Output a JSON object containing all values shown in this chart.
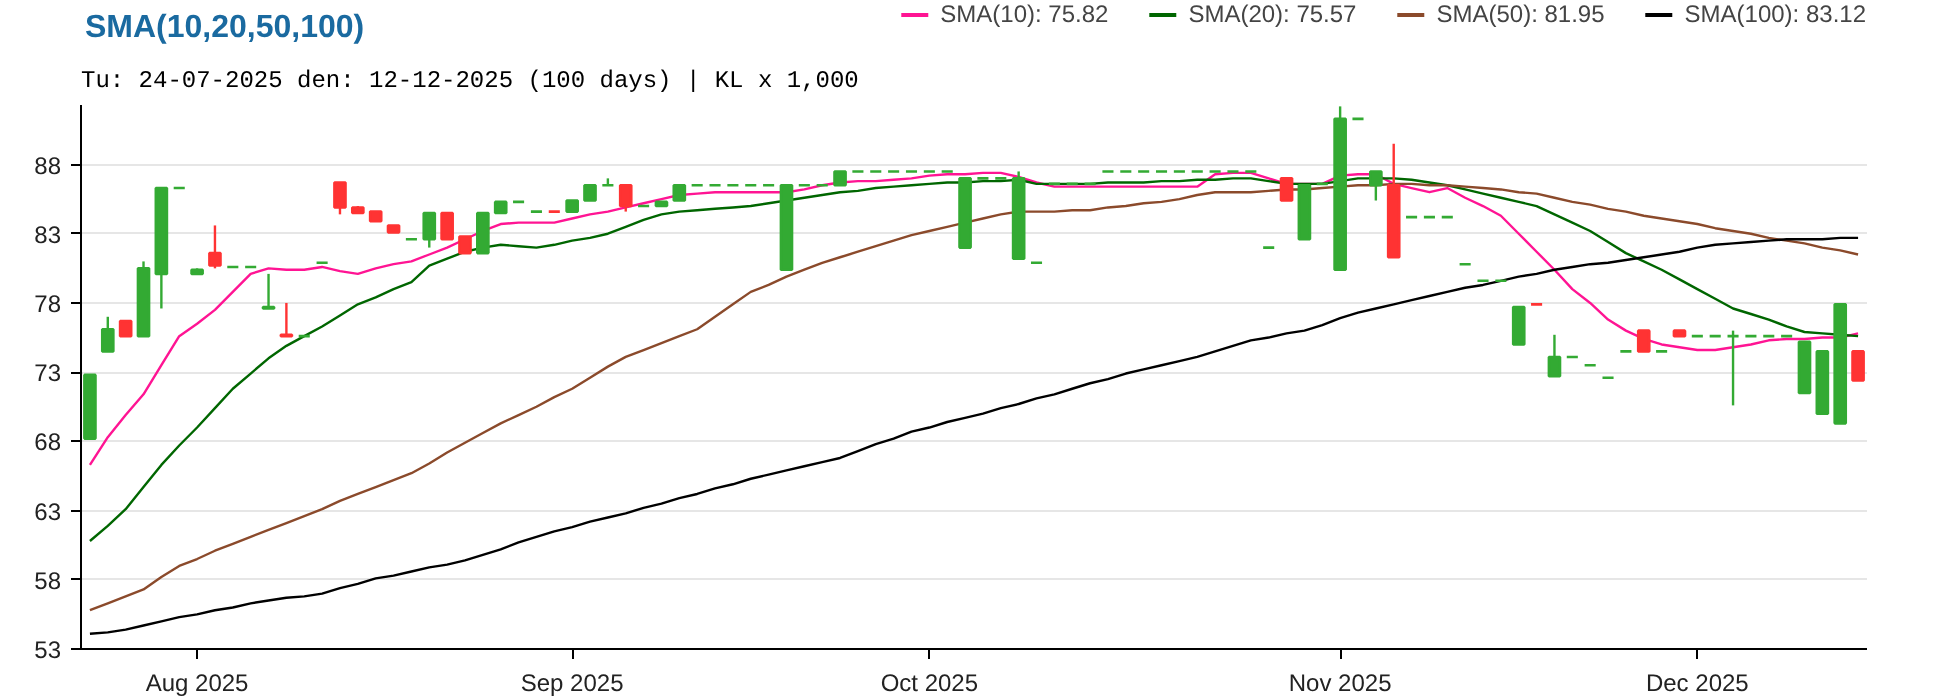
{
  "chart_data": {
    "type": "candlestick",
    "title": "SMA(10,20,50,100)",
    "subtitle": "Tu: 24-07-2025 den: 12-12-2025 (100 days) | KL x 1,000",
    "categories": [
      null,
      null,
      null,
      null,
      null,
      null,
      "Aug 2025",
      null,
      null,
      null,
      null,
      null,
      null,
      null,
      null,
      null,
      null,
      null,
      null,
      null,
      null,
      null,
      null,
      null,
      null,
      null,
      null,
      "Sep 2025",
      null,
      null,
      null,
      null,
      null,
      null,
      null,
      null,
      null,
      null,
      null,
      null,
      null,
      null,
      null,
      null,
      null,
      null,
      null,
      "Oct 2025",
      null,
      null,
      null,
      null,
      null,
      null,
      null,
      null,
      null,
      null,
      null,
      null,
      null,
      null,
      null,
      null,
      null,
      null,
      null,
      null,
      null,
      null,
      "Nov 2025",
      null,
      null,
      null,
      null,
      null,
      null,
      null,
      null,
      null,
      null,
      null,
      null,
      null,
      null,
      null,
      null,
      null,
      null,
      null,
      "Dec 2025",
      null,
      null,
      null,
      null,
      null,
      null,
      null,
      null,
      null
    ],
    "ohlc": [
      [
        68.2,
        72.8,
        68.2,
        72.8
      ],
      [
        74.5,
        77.0,
        74.5,
        76.1
      ],
      [
        76.7,
        76.7,
        75.6,
        75.6
      ],
      [
        75.6,
        81.0,
        75.6,
        80.5
      ],
      [
        80.1,
        86.3,
        77.6,
        86.3
      ],
      [
        86.3,
        86.3,
        86.3,
        86.3
      ],
      [
        80.1,
        80.5,
        80.1,
        80.4
      ],
      [
        81.6,
        83.6,
        80.5,
        80.7
      ],
      [
        80.6,
        80.6,
        80.6,
        80.6
      ],
      [
        80.6,
        80.6,
        80.6,
        80.6
      ],
      [
        77.6,
        80.1,
        77.6,
        77.7
      ],
      [
        75.7,
        78.0,
        75.6,
        75.6
      ],
      [
        75.6,
        75.6,
        75.6,
        75.6
      ],
      [
        80.9,
        80.9,
        80.9,
        80.9
      ],
      [
        86.7,
        86.7,
        84.4,
        84.9
      ],
      [
        84.9,
        85.0,
        84.5,
        84.5
      ],
      [
        84.6,
        84.6,
        83.9,
        83.9
      ],
      [
        83.6,
        83.6,
        83.1,
        83.1
      ],
      [
        82.6,
        82.6,
        82.6,
        82.6
      ],
      [
        82.6,
        84.5,
        82.0,
        84.5
      ],
      [
        84.5,
        84.5,
        82.6,
        82.6
      ],
      [
        82.8,
        82.8,
        81.6,
        81.6
      ],
      [
        81.6,
        84.5,
        81.6,
        84.5
      ],
      [
        84.5,
        85.3,
        84.5,
        85.3
      ],
      [
        85.3,
        85.3,
        85.3,
        85.3
      ],
      [
        84.6,
        84.6,
        84.6,
        84.6
      ],
      [
        84.6,
        84.6,
        84.6,
        84.6
      ],
      [
        84.6,
        85.4,
        84.6,
        85.4
      ],
      [
        85.4,
        86.5,
        85.4,
        86.5
      ],
      [
        86.5,
        87.0,
        86.5,
        86.5
      ],
      [
        86.5,
        86.5,
        84.6,
        85.0
      ],
      [
        85.0,
        85.0,
        85.0,
        85.0
      ],
      [
        85.0,
        85.3,
        85.0,
        85.3
      ],
      [
        85.4,
        86.5,
        85.4,
        86.5
      ],
      [
        86.5,
        86.5,
        86.5,
        86.5
      ],
      [
        86.5,
        86.5,
        86.5,
        86.5
      ],
      [
        86.5,
        86.5,
        86.5,
        86.5
      ],
      [
        86.5,
        86.5,
        86.5,
        86.5
      ],
      [
        86.5,
        86.5,
        86.5,
        86.5
      ],
      [
        80.4,
        86.5,
        80.4,
        86.5
      ],
      [
        86.5,
        86.5,
        86.5,
        86.5
      ],
      [
        86.5,
        86.5,
        86.5,
        86.5
      ],
      [
        86.5,
        87.5,
        86.5,
        87.5
      ],
      [
        87.5,
        87.5,
        87.5,
        87.5
      ],
      [
        87.5,
        87.5,
        87.5,
        87.5
      ],
      [
        87.5,
        87.5,
        87.5,
        87.5
      ],
      [
        87.5,
        87.5,
        87.5,
        87.5
      ],
      [
        87.5,
        87.5,
        87.5,
        87.5
      ],
      [
        87.5,
        87.5,
        87.5,
        87.5
      ],
      [
        82.0,
        87.0,
        82.0,
        87.0
      ],
      [
        87.0,
        87.0,
        87.0,
        87.0
      ],
      [
        87.0,
        87.0,
        87.0,
        87.0
      ],
      [
        81.2,
        87.5,
        81.2,
        87.0
      ],
      [
        80.9,
        80.9,
        80.9,
        80.9
      ],
      [
        86.6,
        86.6,
        86.6,
        86.6
      ],
      [
        86.6,
        86.6,
        86.6,
        86.6
      ],
      [
        86.6,
        86.6,
        86.6,
        86.6
      ],
      [
        87.5,
        87.5,
        87.5,
        87.5
      ],
      [
        87.5,
        87.5,
        87.5,
        87.5
      ],
      [
        87.5,
        87.5,
        87.5,
        87.5
      ],
      [
        87.5,
        87.5,
        87.5,
        87.5
      ],
      [
        87.5,
        87.5,
        87.5,
        87.5
      ],
      [
        87.5,
        87.5,
        87.5,
        87.5
      ],
      [
        87.5,
        87.5,
        87.5,
        87.5
      ],
      [
        87.5,
        87.5,
        87.5,
        87.5
      ],
      [
        87.5,
        87.5,
        87.5,
        87.5
      ],
      [
        82.0,
        82.0,
        82.0,
        82.0
      ],
      [
        87.0,
        87.0,
        85.4,
        85.4
      ],
      [
        82.6,
        86.5,
        82.6,
        86.5
      ],
      [
        86.6,
        86.6,
        86.6,
        86.6
      ],
      [
        80.4,
        92.2,
        80.4,
        91.3
      ],
      [
        91.3,
        91.3,
        91.3,
        91.3
      ],
      [
        86.5,
        87.5,
        85.4,
        87.5
      ],
      [
        86.5,
        89.5,
        81.3,
        81.3
      ],
      [
        84.2,
        84.2,
        84.2,
        84.2
      ],
      [
        84.2,
        84.2,
        84.2,
        84.2
      ],
      [
        84.2,
        84.2,
        84.2,
        84.2
      ],
      [
        80.8,
        80.8,
        80.8,
        80.8
      ],
      [
        79.6,
        79.6,
        79.6,
        79.6
      ],
      [
        79.6,
        79.6,
        79.6,
        79.6
      ],
      [
        75.0,
        77.7,
        75.0,
        77.7
      ],
      [
        77.9,
        77.9,
        77.9,
        77.9
      ],
      [
        72.7,
        75.7,
        72.7,
        74.1
      ],
      [
        74.1,
        74.1,
        74.1,
        74.1
      ],
      [
        73.5,
        73.5,
        73.5,
        73.5
      ],
      [
        72.6,
        72.6,
        72.6,
        72.6
      ],
      [
        74.5,
        74.5,
        74.5,
        74.5
      ],
      [
        76.0,
        76.0,
        74.5,
        74.5
      ],
      [
        74.5,
        74.5,
        74.5,
        74.5
      ],
      [
        76.0,
        76.0,
        75.6,
        75.6
      ],
      [
        75.6,
        75.6,
        75.6,
        75.6
      ],
      [
        75.6,
        75.6,
        75.6,
        75.6
      ],
      [
        75.6,
        76.0,
        70.6,
        75.6
      ],
      [
        75.6,
        75.6,
        75.6,
        75.6
      ],
      [
        75.6,
        75.6,
        75.6,
        75.6
      ],
      [
        75.6,
        75.6,
        75.6,
        75.6
      ],
      [
        71.5,
        75.2,
        71.5,
        75.2
      ],
      [
        70.0,
        74.5,
        70.0,
        74.5
      ],
      [
        69.3,
        77.9,
        69.3,
        77.9
      ],
      [
        74.5,
        74.5,
        72.4,
        72.4
      ]
    ],
    "colors": [
      "#33aa33",
      "#33aa33",
      "#ff3333",
      "#33aa33",
      "#33aa33",
      "#33aa33",
      "#33aa33",
      "#ff3333",
      "#33aa33",
      "#33aa33",
      "#33aa33",
      "#ff3333",
      "#33aa33",
      "#33aa33",
      "#ff3333",
      "#ff3333",
      "#ff3333",
      "#ff3333",
      "#33aa33",
      "#33aa33",
      "#ff3333",
      "#ff3333",
      "#33aa33",
      "#33aa33",
      "#33aa33",
      "#33aa33",
      "#ff3333",
      "#33aa33",
      "#33aa33",
      "#33aa33",
      "#ff3333",
      "#33aa33",
      "#33aa33",
      "#33aa33",
      "#33aa33",
      "#33aa33",
      "#33aa33",
      "#33aa33",
      "#33aa33",
      "#33aa33",
      "#33aa33",
      "#33aa33",
      "#33aa33",
      "#33aa33",
      "#33aa33",
      "#33aa33",
      "#33aa33",
      "#33aa33",
      "#33aa33",
      "#33aa33",
      "#33aa33",
      "#33aa33",
      "#33aa33",
      "#33aa33",
      "#33aa33",
      "#33aa33",
      "#33aa33",
      "#33aa33",
      "#33aa33",
      "#33aa33",
      "#33aa33",
      "#33aa33",
      "#33aa33",
      "#33aa33",
      "#33aa33",
      "#33aa33",
      "#33aa33",
      "#ff3333",
      "#33aa33",
      "#33aa33",
      "#33aa33",
      "#33aa33",
      "#33aa33",
      "#ff3333",
      "#33aa33",
      "#33aa33",
      "#33aa33",
      "#33aa33",
      "#33aa33",
      "#33aa33",
      "#33aa33",
      "#ff3333",
      "#33aa33",
      "#33aa33",
      "#33aa33",
      "#33aa33",
      "#33aa33",
      "#ff3333",
      "#33aa33",
      "#ff3333",
      "#33aa33",
      "#33aa33",
      "#33aa33",
      "#33aa33",
      "#33aa33",
      "#33aa33",
      "#33aa33",
      "#33aa33",
      "#33aa33",
      "#ff3333"
    ],
    "series": [
      {
        "type": "line",
        "name": "SMA(10): 75.82",
        "color": "#ff1493",
        "values": [
          66.3,
          68.3,
          69.9,
          71.4,
          73.5,
          75.6,
          76.5,
          77.5,
          78.8,
          80.1,
          80.5,
          80.4,
          80.4,
          80.6,
          80.3,
          80.1,
          80.5,
          80.8,
          81.0,
          81.5,
          82.0,
          82.6,
          83.2,
          83.7,
          83.8,
          83.8,
          83.8,
          84.1,
          84.4,
          84.6,
          84.9,
          85.2,
          85.5,
          85.8,
          85.9,
          86.0,
          86.0,
          86.0,
          86.0,
          86.0,
          86.2,
          86.5,
          86.7,
          86.8,
          86.8,
          86.9,
          87.0,
          87.2,
          87.3,
          87.3,
          87.4,
          87.4,
          87.1,
          86.7,
          86.4,
          86.4,
          86.4,
          86.4,
          86.4,
          86.4,
          86.4,
          86.4,
          86.4,
          87.3,
          87.4,
          87.4,
          87.0,
          86.6,
          86.6,
          86.6,
          87.2,
          87.3,
          87.3,
          86.6,
          86.3,
          86.0,
          86.3,
          85.6,
          85.0,
          84.3,
          83.0,
          81.7,
          80.4,
          79.0,
          78.0,
          76.8,
          76.0,
          75.4,
          75.0,
          74.8,
          74.6,
          74.6,
          74.8,
          75.0,
          75.3,
          75.4,
          75.4,
          75.5,
          75.5,
          75.8
        ]
      },
      {
        "type": "line",
        "name": "SMA(20): 75.57",
        "color": "#006600",
        "values": [
          60.8,
          61.9,
          63.1,
          64.7,
          66.3,
          67.7,
          69.0,
          70.4,
          71.8,
          72.9,
          74.0,
          74.9,
          75.6,
          76.3,
          77.1,
          77.9,
          78.4,
          79.0,
          79.5,
          80.7,
          81.2,
          81.7,
          82.0,
          82.2,
          82.1,
          82.0,
          82.2,
          82.5,
          82.7,
          83.0,
          83.5,
          84.0,
          84.4,
          84.6,
          84.7,
          84.8,
          84.9,
          85.0,
          85.2,
          85.4,
          85.6,
          85.8,
          86.0,
          86.1,
          86.3,
          86.4,
          86.5,
          86.6,
          86.7,
          86.7,
          86.8,
          86.8,
          86.9,
          86.6,
          86.6,
          86.6,
          86.6,
          86.7,
          86.7,
          86.7,
          86.8,
          86.8,
          86.9,
          86.9,
          87.0,
          87.0,
          86.8,
          86.6,
          86.6,
          86.6,
          86.8,
          87.0,
          87.0,
          87.0,
          86.9,
          86.7,
          86.5,
          86.2,
          85.9,
          85.6,
          85.3,
          85.0,
          84.4,
          83.8,
          83.2,
          82.4,
          81.6,
          81.0,
          80.4,
          79.7,
          79.0,
          78.3,
          77.6,
          77.2,
          76.8,
          76.3,
          75.9,
          75.8,
          75.7,
          75.6
        ]
      },
      {
        "type": "line",
        "name": "SMA(50): 81.95",
        "color": "#8b4a2b",
        "values": [
          55.8,
          56.3,
          56.8,
          57.3,
          58.2,
          59.0,
          59.5,
          60.1,
          60.6,
          61.1,
          61.6,
          62.1,
          62.6,
          63.1,
          63.7,
          64.2,
          64.7,
          65.2,
          65.7,
          66.4,
          67.2,
          67.9,
          68.6,
          69.3,
          69.9,
          70.5,
          71.2,
          71.8,
          72.6,
          73.4,
          74.1,
          74.6,
          75.1,
          75.6,
          76.1,
          77.0,
          77.9,
          78.8,
          79.3,
          79.9,
          80.4,
          80.9,
          81.3,
          81.7,
          82.1,
          82.5,
          82.9,
          83.2,
          83.5,
          83.8,
          84.1,
          84.4,
          84.6,
          84.6,
          84.6,
          84.7,
          84.7,
          84.9,
          85.0,
          85.2,
          85.3,
          85.5,
          85.8,
          86.0,
          86.0,
          86.0,
          86.1,
          86.2,
          86.2,
          86.3,
          86.4,
          86.5,
          86.5,
          86.6,
          86.6,
          86.5,
          86.5,
          86.4,
          86.3,
          86.2,
          86.0,
          85.9,
          85.6,
          85.3,
          85.1,
          84.8,
          84.6,
          84.3,
          84.1,
          83.9,
          83.7,
          83.4,
          83.2,
          83.0,
          82.7,
          82.5,
          82.3,
          82.0,
          81.8,
          81.5
        ]
      },
      {
        "type": "line",
        "name": "SMA(100): 83.12",
        "color": "#000000",
        "values": [
          54.1,
          54.2,
          54.4,
          54.7,
          55.0,
          55.3,
          55.5,
          55.8,
          56.0,
          56.3,
          56.5,
          56.7,
          56.8,
          57.0,
          57.4,
          57.7,
          58.1,
          58.3,
          58.6,
          58.9,
          59.1,
          59.4,
          59.8,
          60.2,
          60.7,
          61.1,
          61.5,
          61.8,
          62.2,
          62.5,
          62.8,
          63.2,
          63.5,
          63.9,
          64.2,
          64.6,
          64.9,
          65.3,
          65.6,
          65.9,
          66.2,
          66.5,
          66.8,
          67.3,
          67.8,
          68.2,
          68.7,
          69.0,
          69.4,
          69.7,
          70.0,
          70.4,
          70.7,
          71.1,
          71.4,
          71.8,
          72.2,
          72.5,
          72.9,
          73.2,
          73.5,
          73.8,
          74.1,
          74.5,
          74.9,
          75.3,
          75.5,
          75.8,
          76.0,
          76.4,
          76.9,
          77.3,
          77.6,
          77.9,
          78.2,
          78.5,
          78.8,
          79.1,
          79.3,
          79.6,
          79.9,
          80.1,
          80.4,
          80.6,
          80.8,
          80.9,
          81.1,
          81.3,
          81.5,
          81.7,
          82.0,
          82.2,
          82.3,
          82.4,
          82.5,
          82.6,
          82.6,
          82.6,
          82.7,
          82.7
        ]
      }
    ],
    "ylim": [
      53,
      92.3
    ],
    "yticks": [
      53,
      58,
      63,
      68,
      73,
      78,
      83,
      88
    ],
    "grid": "y",
    "legend": "top right"
  }
}
